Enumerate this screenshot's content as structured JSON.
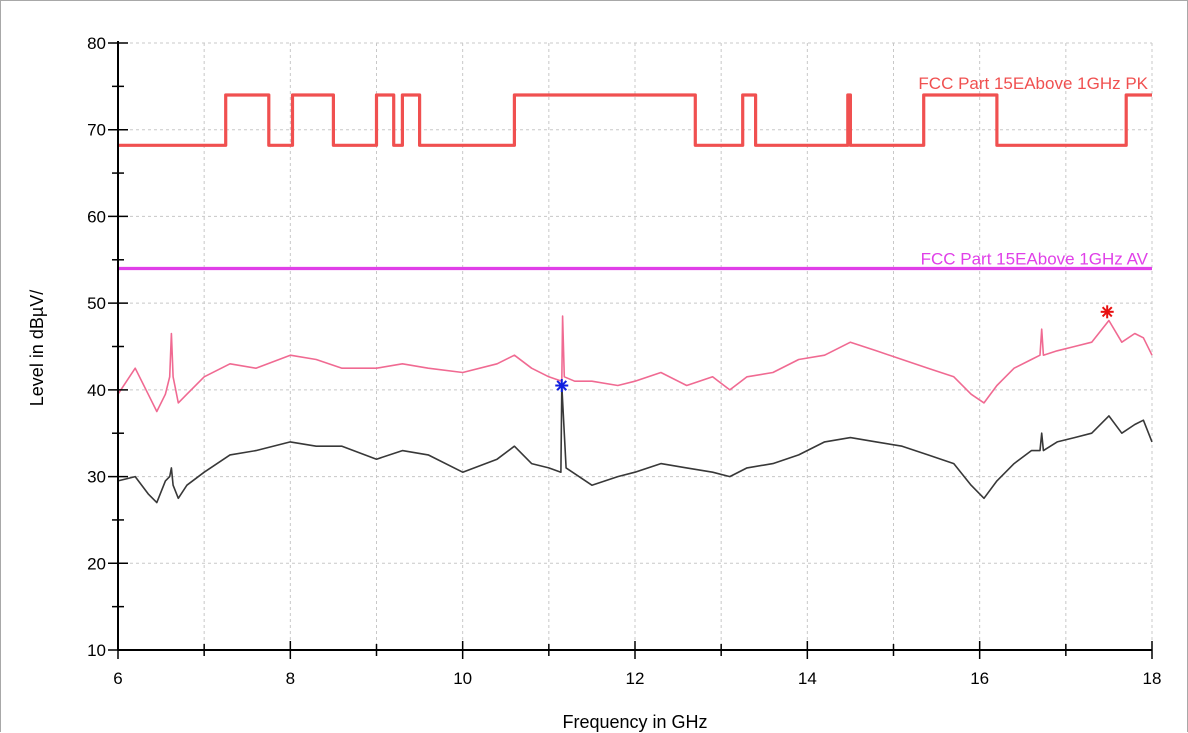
{
  "chart_data": {
    "type": "line",
    "xlabel": "Frequency in GHz",
    "ylabel": "Level in dBµV/",
    "xlim": [
      6,
      18
    ],
    "ylim": [
      10,
      80
    ],
    "xticks": [
      6,
      8,
      10,
      12,
      14,
      16,
      18
    ],
    "yticks": [
      10,
      20,
      30,
      40,
      50,
      60,
      70,
      80
    ],
    "grid": true,
    "colors": {
      "pk_limit": "#f05050",
      "av_limit": "#e040e8",
      "pk_trace": "#f06a92",
      "av_trace": "#383838",
      "marker_pk": "#e81010",
      "marker_av": "#1020e0"
    },
    "series": [
      {
        "name": "FCC Part 15EAbove 1GHz PK",
        "kind": "limit",
        "x": [
          6.0,
          7.25,
          7.25,
          7.75,
          7.75,
          8.025,
          8.025,
          8.5,
          8.5,
          9.0,
          9.0,
          9.2,
          9.2,
          9.3,
          9.3,
          9.5,
          9.5,
          10.6,
          10.6,
          12.7,
          12.7,
          13.25,
          13.25,
          13.4,
          13.4,
          14.47,
          14.47,
          14.5,
          14.5,
          15.35,
          15.35,
          16.2,
          16.2,
          17.7,
          17.7,
          18.0
        ],
        "y": [
          68.2,
          68.2,
          74.0,
          74.0,
          68.2,
          68.2,
          74.0,
          74.0,
          68.2,
          68.2,
          74.0,
          74.0,
          68.2,
          68.2,
          74.0,
          74.0,
          68.2,
          68.2,
          74.0,
          74.0,
          68.2,
          68.2,
          74.0,
          74.0,
          68.2,
          68.2,
          74.0,
          74.0,
          68.2,
          68.2,
          74.0,
          74.0,
          68.2,
          68.2,
          74.0,
          74.0
        ]
      },
      {
        "name": "FCC Part 15EAbove 1GHz AV",
        "kind": "limit",
        "x": [
          6.0,
          18.0
        ],
        "y": [
          54.0,
          54.0
        ]
      },
      {
        "name": "",
        "kind": "trace",
        "x": [
          6.0,
          6.2,
          6.35,
          6.45,
          6.55,
          6.6,
          6.62,
          6.64,
          6.7,
          6.8,
          7.0,
          7.3,
          7.6,
          8.0,
          8.3,
          8.6,
          9.0,
          9.3,
          9.6,
          10.0,
          10.4,
          10.6,
          10.8,
          11.0,
          11.15,
          11.16,
          11.18,
          11.3,
          11.5,
          11.8,
          12.0,
          12.3,
          12.6,
          12.9,
          13.1,
          13.3,
          13.6,
          13.9,
          14.2,
          14.5,
          14.8,
          15.1,
          15.4,
          15.7,
          15.9,
          16.05,
          16.2,
          16.4,
          16.6,
          16.7,
          16.72,
          16.74,
          16.9,
          17.1,
          17.3,
          17.5,
          17.65,
          17.8,
          17.9,
          18.0
        ],
        "y": [
          39.5,
          42.5,
          39.5,
          37.5,
          39.5,
          41.5,
          46.5,
          41.5,
          38.5,
          39.5,
          41.5,
          43.0,
          42.5,
          44.0,
          43.5,
          42.5,
          42.5,
          43.0,
          42.5,
          42.0,
          43.0,
          44.0,
          42.5,
          41.5,
          41.0,
          48.5,
          41.5,
          41.0,
          41.0,
          40.5,
          41.0,
          42.0,
          40.5,
          41.5,
          40.0,
          41.5,
          42.0,
          43.5,
          44.0,
          45.5,
          44.5,
          43.5,
          42.5,
          41.5,
          39.5,
          38.5,
          40.5,
          42.5,
          43.5,
          44.0,
          47.0,
          44.0,
          44.5,
          45.0,
          45.5,
          48.0,
          45.5,
          46.5,
          46.0,
          44.0
        ]
      },
      {
        "name": "",
        "kind": "trace",
        "x": [
          6.0,
          6.2,
          6.35,
          6.45,
          6.55,
          6.6,
          6.62,
          6.64,
          6.7,
          6.8,
          7.0,
          7.3,
          7.6,
          8.0,
          8.3,
          8.6,
          9.0,
          9.3,
          9.6,
          10.0,
          10.4,
          10.6,
          10.8,
          11.0,
          11.14,
          11.15,
          11.2,
          11.5,
          11.8,
          12.0,
          12.3,
          12.6,
          12.9,
          13.1,
          13.3,
          13.6,
          13.9,
          14.2,
          14.5,
          14.8,
          15.1,
          15.4,
          15.7,
          15.9,
          16.05,
          16.2,
          16.4,
          16.6,
          16.7,
          16.72,
          16.74,
          16.9,
          17.1,
          17.3,
          17.5,
          17.65,
          17.8,
          17.9,
          18.0
        ],
        "y": [
          29.5,
          30.0,
          28.0,
          27.0,
          29.5,
          30.0,
          31.0,
          29.0,
          27.5,
          29.0,
          30.5,
          32.5,
          33.0,
          34.0,
          33.5,
          33.5,
          32.0,
          33.0,
          32.5,
          30.5,
          32.0,
          33.5,
          31.5,
          31.0,
          30.5,
          40.5,
          31.0,
          29.0,
          30.0,
          30.5,
          31.5,
          31.0,
          30.5,
          30.0,
          31.0,
          31.5,
          32.5,
          34.0,
          34.5,
          34.0,
          33.5,
          32.5,
          31.5,
          29.0,
          27.5,
          29.5,
          31.5,
          33.0,
          33.0,
          35.0,
          33.0,
          34.0,
          34.5,
          35.0,
          37.0,
          35.0,
          36.0,
          36.5,
          34.0
        ]
      }
    ],
    "markers": [
      {
        "x": 17.48,
        "y": 49.0,
        "color": "#e81010"
      },
      {
        "x": 11.15,
        "y": 40.5,
        "color": "#1020e0"
      }
    ]
  }
}
